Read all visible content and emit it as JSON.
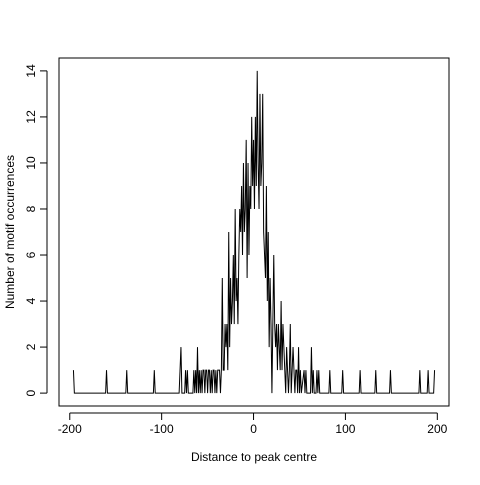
{
  "chart_data": {
    "type": "line",
    "x_label": "Distance to peak centre",
    "y_label": "Number of motif occurrences",
    "color": "#000000",
    "xlim": [
      -211.72,
      212.72
    ],
    "ylim": [
      -0.56,
      14.56
    ],
    "xticks": [
      -200,
      -100,
      0,
      100,
      200
    ],
    "yticks": [
      0,
      2,
      4,
      6,
      8,
      10,
      12,
      14
    ],
    "x": [
      -196,
      -195,
      -161,
      -160,
      -159,
      -139,
      -138,
      -137,
      -109,
      -108,
      -107,
      -81,
      -80,
      -79,
      -78,
      -75,
      -74,
      -73,
      -72,
      -71,
      -66,
      -65,
      -64,
      -63,
      -62,
      -61,
      -60,
      -59,
      -58,
      -57,
      -56,
      -55,
      -54,
      -53,
      -52,
      -51,
      -50,
      -49,
      -48,
      -47,
      -46,
      -45,
      -44,
      -43,
      -42,
      -41,
      -40,
      -39,
      -38,
      -37,
      -36,
      -35,
      -34,
      -33,
      -32,
      -31,
      -30,
      -29,
      -28,
      -27,
      -26,
      -25,
      -24,
      -23,
      -22,
      -21,
      -20,
      -19,
      -18,
      -17,
      -16,
      -15,
      -14,
      -13,
      -12,
      -11,
      -10,
      -9,
      -8,
      -7,
      -6,
      -5,
      -4,
      -3,
      -2,
      -1,
      0,
      1,
      2,
      3,
      4,
      5,
      6,
      7,
      8,
      9,
      10,
      11,
      12,
      13,
      14,
      15,
      16,
      17,
      18,
      19,
      20,
      21,
      22,
      23,
      24,
      25,
      26,
      27,
      28,
      29,
      30,
      31,
      32,
      33,
      34,
      35,
      36,
      37,
      38,
      39,
      40,
      41,
      42,
      43,
      44,
      45,
      46,
      47,
      48,
      49,
      50,
      51,
      52,
      55,
      56,
      57,
      58,
      62,
      63,
      64,
      65,
      66,
      68,
      69,
      70,
      71,
      72,
      82,
      83,
      84,
      96,
      97,
      98,
      115,
      116,
      117,
      132,
      133,
      134,
      148,
      149,
      150,
      180,
      181,
      182,
      189,
      190,
      191,
      196,
      197
    ],
    "values": [
      1,
      0,
      0,
      1,
      0,
      0,
      1,
      0,
      0,
      1,
      0,
      0,
      1,
      2,
      0,
      0,
      1,
      0,
      1,
      0,
      0,
      1,
      0,
      1,
      0,
      2,
      0,
      1,
      0,
      1,
      0,
      1,
      1,
      0,
      1,
      1,
      0,
      1,
      1,
      0,
      1,
      0,
      1,
      1,
      0,
      1,
      0,
      1,
      1,
      1,
      0,
      1,
      5,
      1,
      1,
      3,
      2,
      3,
      1,
      7,
      2,
      5,
      3,
      4,
      6,
      3,
      8,
      4,
      5,
      3,
      6,
      8,
      7,
      9,
      6,
      10,
      7,
      8,
      11,
      5,
      10,
      6,
      9,
      8,
      12,
      9,
      11,
      8,
      12,
      9,
      14,
      10,
      8,
      13,
      9,
      10,
      13,
      7,
      6,
      5,
      9,
      4,
      7,
      2,
      5,
      3,
      0,
      3,
      6,
      3,
      2,
      3,
      1,
      3,
      2,
      1,
      4,
      1,
      3,
      2,
      1,
      0,
      2,
      1,
      0,
      1,
      3,
      0,
      1,
      2,
      1,
      0,
      1,
      1,
      0,
      2,
      0,
      1,
      0,
      1,
      0,
      1,
      0,
      0,
      2,
      0,
      1,
      0,
      0,
      1,
      0,
      1,
      0,
      0,
      1,
      0,
      0,
      1,
      0,
      0,
      1,
      0,
      0,
      1,
      0,
      0,
      1,
      0,
      0,
      1,
      0,
      0,
      1,
      0,
      0,
      1
    ]
  }
}
